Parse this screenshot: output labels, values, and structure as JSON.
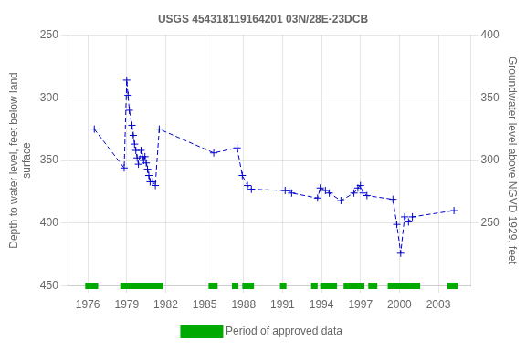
{
  "chart_data": {
    "type": "line",
    "title": "USGS 454318119164201 03N/28E-23DCB",
    "y_label": "Depth to water level, feet below land\nsurface",
    "y2_label": "Groundwater level above NGVD 1929, feet",
    "xlim": [
      1974.5,
      2005.5
    ],
    "xticks": [
      1976,
      1979,
      1982,
      1985,
      1988,
      1991,
      1994,
      1997,
      2000,
      2003
    ],
    "ylim": [
      250,
      450
    ],
    "yticks": [
      250,
      300,
      350,
      400,
      450
    ],
    "y2lim": [
      200,
      400
    ],
    "y2ticks": [
      400,
      350,
      300,
      250
    ],
    "grid": true,
    "legend": "bottom",
    "x": [
      1976.5,
      1978.8,
      1979.0,
      1979.1,
      1979.2,
      1979.4,
      1979.5,
      1979.6,
      1979.7,
      1979.8,
      1979.9,
      1980.1,
      1980.2,
      1980.3,
      1980.4,
      1980.5,
      1980.6,
      1980.7,
      1980.8,
      1981.0,
      1981.2,
      1981.5,
      1985.7,
      1987.5,
      1987.9,
      1988.3,
      1988.6,
      1991.2,
      1991.5,
      1991.7,
      1993.7,
      1993.9,
      1994.3,
      1994.6,
      1995.5,
      1996.5,
      1996.8,
      1997.0,
      1997.2,
      1997.5,
      1999.5,
      1999.8,
      2000.1,
      2000.4,
      2000.7,
      2001.0,
      2004.2
    ],
    "series": [
      {
        "color": "#0000cc",
        "line_style": "dashed",
        "marker": "plus",
        "values": [
          325,
          356,
          286,
          298,
          310,
          322,
          330,
          337,
          342,
          348,
          353,
          342,
          347,
          350,
          347,
          352,
          357,
          362,
          367,
          367,
          370,
          325,
          344,
          340,
          362,
          370,
          373,
          374,
          374,
          376,
          380,
          372,
          374,
          376,
          382,
          376,
          372,
          370,
          376,
          378,
          381,
          401,
          424,
          395,
          399,
          395,
          390
        ]
      }
    ],
    "approved_periods": {
      "name": "Period of approved data",
      "color": "#00aa00",
      "y": 450,
      "periods": [
        [
          1975.8,
          1976.8
        ],
        [
          1978.5,
          1981.8
        ],
        [
          1985.3,
          1986.0
        ],
        [
          1987.1,
          1987.6
        ],
        [
          1987.9,
          1988.8
        ],
        [
          1990.8,
          1991.3
        ],
        [
          1993.2,
          1993.7
        ],
        [
          1993.9,
          1995.2
        ],
        [
          1995.7,
          1997.3
        ],
        [
          1997.6,
          1998.3
        ],
        [
          1999.1,
          2001.6
        ],
        [
          2003.7,
          2004.5
        ]
      ]
    }
  }
}
